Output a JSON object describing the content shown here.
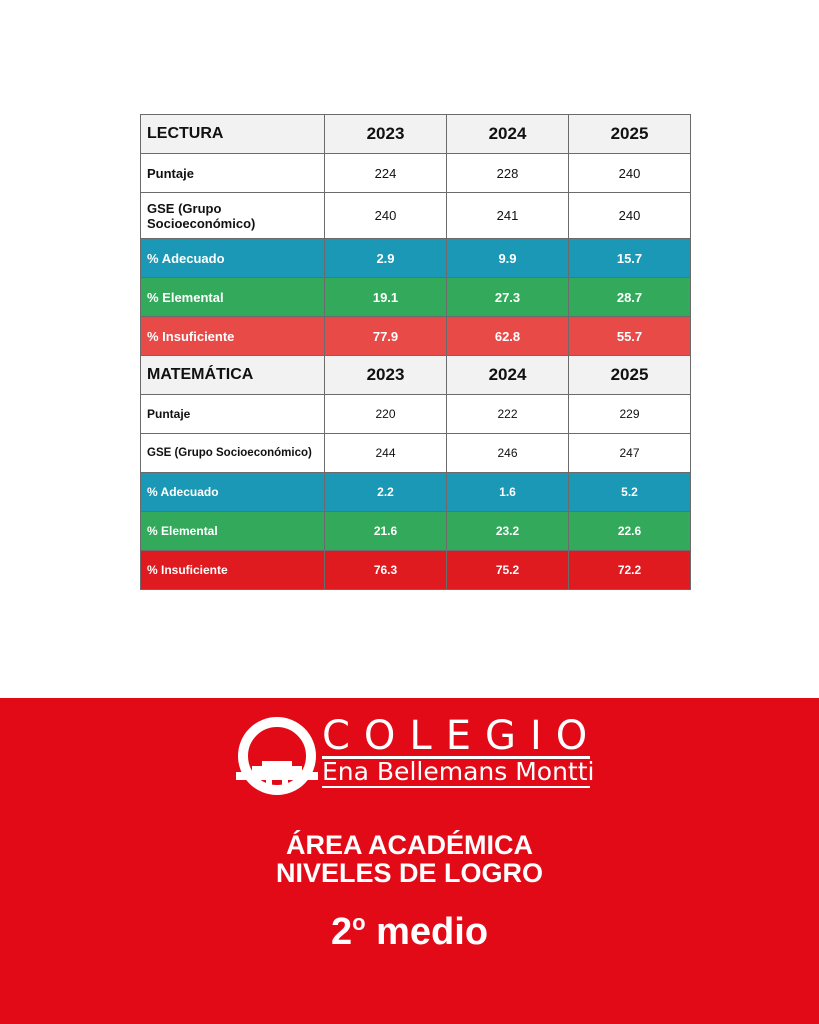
{
  "lectura": {
    "header": "LECTURA",
    "years": [
      "2023",
      "2024",
      "2025"
    ],
    "rows": [
      {
        "label": "Puntaje",
        "values": [
          "224",
          "228",
          "240"
        ]
      },
      {
        "label": "GSE (Grupo Socioeconómico)",
        "values": [
          "240",
          "241",
          "240"
        ]
      },
      {
        "label": "% Adecuado",
        "values": [
          "2.9",
          "9.9",
          "15.7"
        ]
      },
      {
        "label": "% Elemental",
        "values": [
          "19.1",
          "27.3",
          "28.7"
        ]
      },
      {
        "label": "% Insuficiente",
        "values": [
          "77.9",
          "62.8",
          "55.7"
        ]
      }
    ]
  },
  "matematica": {
    "header": "MATEMÁTICA",
    "years": [
      "2023",
      "2024",
      "2025"
    ],
    "rows": [
      {
        "label": "Puntaje",
        "values": [
          "220",
          "222",
          "229"
        ]
      },
      {
        "label": "GSE (Grupo Socioeconómico)",
        "values": [
          "244",
          "246",
          "247"
        ]
      },
      {
        "label": "% Adecuado",
        "values": [
          "2.2",
          "1.6",
          "5.2"
        ]
      },
      {
        "label": "% Elemental",
        "values": [
          "21.6",
          "23.2",
          "22.6"
        ]
      },
      {
        "label": "% Insuficiente",
        "values": [
          "76.3",
          "75.2",
          "72.2"
        ]
      }
    ]
  },
  "colors": {
    "adecuado": "#1a98b5",
    "elemental": "#33a95b",
    "insuficiente": "#e01b1f",
    "footer": "#e20a17"
  },
  "logo": {
    "word": "COLEGIO",
    "school": "Ena Bellemans Montti"
  },
  "footer": {
    "line1": "ÁREA ACADÉMICA",
    "line2": "NIVELES DE LOGRO",
    "grade_number": "2",
    "grade_sup": "o",
    "grade_word": "medio"
  }
}
